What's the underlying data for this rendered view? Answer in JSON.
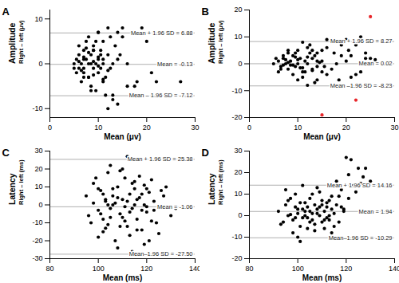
{
  "chart_data": [
    {
      "type": "scatter",
      "title": "A",
      "xlabel": "Mean (μv)",
      "ylabel": [
        "Amplitude",
        "Right – left (μv)"
      ],
      "xlim": [
        0,
        30
      ],
      "xticks": [
        0,
        10,
        20,
        30
      ],
      "ylim": [
        -12,
        12
      ],
      "yticks": [
        -10,
        0,
        10
      ],
      "reference_lines": [
        {
          "value": 6.88,
          "label": "Mean + 1.96 SD = 6.88"
        },
        {
          "value": -0.13,
          "label": "Mean = -0.13"
        },
        {
          "value": -7.12,
          "label": "Mean – 1.96 SD = -7.12"
        }
      ],
      "series": [
        {
          "color": "#000000",
          "x": [
            5,
            5.5,
            6,
            6,
            6.5,
            7,
            7,
            7.5,
            8,
            8,
            8.5,
            9,
            9,
            9.5,
            10,
            10,
            10.5,
            11,
            11,
            12,
            12.5,
            13,
            14,
            5.5,
            6,
            7,
            7.5,
            8,
            8.5,
            9,
            9.5,
            10,
            10.5,
            11,
            11.5,
            12,
            13,
            13.5,
            14,
            15,
            6,
            6.5,
            7,
            8,
            9,
            10,
            11,
            12,
            6.5,
            7.5,
            8.5,
            9.5,
            10.5,
            11.5,
            12.5,
            14,
            16,
            17,
            17.5,
            18,
            19,
            20,
            21,
            22,
            27,
            15,
            13,
            12,
            10,
            9,
            8,
            7,
            16,
            14.5,
            5,
            9,
            10,
            11,
            7,
            8.5
          ],
          "values": [
            0,
            1,
            -1,
            2,
            0,
            3,
            -2,
            1,
            0,
            -3,
            2,
            -1,
            4,
            0,
            1,
            -2,
            3,
            0,
            -4,
            2,
            -1,
            0,
            1,
            -2,
            4,
            -3,
            5,
            6,
            -5,
            3,
            -6,
            7,
            -1,
            5,
            -3,
            8,
            -7,
            4,
            -9,
            6,
            0.5,
            -1.5,
            1.5,
            2.5,
            -2.5,
            1.5,
            -3.5,
            -1.5,
            -4,
            3.5,
            -6,
            5,
            2,
            -7,
            6,
            7,
            -5,
            7,
            -5,
            -4,
            8,
            5,
            -2,
            -4,
            -4,
            8,
            -8,
            -10,
            7,
            3,
            -3,
            1,
            0,
            2,
            -1,
            0.5,
            -0.5,
            1,
            -1,
            0
          ]
        }
      ]
    },
    {
      "type": "scatter",
      "title": "B",
      "xlabel": "Mean (μv)",
      "ylabel": [
        "Amplitude",
        "Right – left (μv)"
      ],
      "xlim": [
        0,
        30
      ],
      "xticks": [
        0,
        10,
        20,
        30
      ],
      "ylim": [
        -20,
        20
      ],
      "yticks": [
        -20,
        -10,
        0,
        10,
        20
      ],
      "reference_lines": [
        {
          "value": 8.27,
          "label": "Mean + 1.96 SD = 8.27"
        },
        {
          "value": 0.02,
          "label": "Mean = 0.02"
        },
        {
          "value": -8.23,
          "label": "Mean –1.96 SD = -8.23"
        }
      ],
      "series": [
        {
          "color": "#000000",
          "x": [
            5,
            6,
            6.5,
            7,
            7.5,
            8,
            8.5,
            9,
            9.5,
            10,
            10.5,
            11,
            11.5,
            12,
            12.5,
            13,
            13.5,
            14,
            15,
            16,
            6,
            7,
            8,
            9,
            10,
            11,
            12,
            13,
            14,
            15,
            16,
            17,
            18,
            19,
            20,
            21,
            22,
            23,
            24,
            25,
            5.5,
            6.5,
            7.5,
            8.5,
            9.5,
            10.5,
            11.5,
            12.5,
            13.5,
            14.5,
            15.5,
            17.5,
            18.5,
            20,
            22,
            24,
            26,
            19,
            17,
            16,
            8,
            9,
            10,
            11,
            12,
            13,
            14,
            7,
            9.5,
            11,
            20.5,
            23,
            15,
            13,
            10,
            8,
            12,
            14,
            18,
            21
          ],
          "values": [
            0,
            1,
            -1,
            2,
            0,
            -2,
            1,
            3,
            -1,
            0,
            2,
            -3,
            1,
            0,
            4,
            -2,
            3,
            -1,
            5,
            -4,
            -3,
            3,
            4,
            -4,
            5,
            -5,
            6,
            2,
            -6,
            1,
            6,
            -2,
            8,
            3,
            9,
            -5,
            7,
            10,
            4,
            2,
            2,
            -2,
            1.5,
            -0.5,
            2.5,
            -1.5,
            -3,
            7,
            -7,
            0.5,
            -1,
            4,
            -6,
            1,
            -4,
            2,
            1.5,
            7,
            -8,
            9,
            0.5,
            -0.5,
            1.5,
            -1.5,
            2.5,
            -2.5,
            1,
            -0.5,
            4,
            8,
            5,
            -3,
            -3,
            5,
            -6,
            5,
            -8,
            4,
            0,
            3
          ]
        },
        {
          "color": "#e8262a",
          "x": [
            25,
            15,
            22
          ],
          "values": [
            17.5,
            -19,
            -13.5
          ]
        }
      ]
    },
    {
      "type": "scatter",
      "title": "C",
      "xlabel": "Mean (ms)",
      "ylabel": [
        "Latency",
        "Right – left (ms)"
      ],
      "xlim": [
        80,
        140
      ],
      "xticks": [
        80,
        100,
        120,
        140
      ],
      "ylim": [
        -30,
        30
      ],
      "yticks": [
        -30,
        -20,
        -10,
        0,
        10,
        20,
        30
      ],
      "reference_lines": [
        {
          "value": 25.38,
          "label": "Mean + 1.96 SD = 25.38"
        },
        {
          "value": -1.06,
          "label": "Mean = -1.06"
        },
        {
          "value": -27.5,
          "label": "Mean–1.96 SD = -27.50"
        }
      ],
      "series": [
        {
          "color": "#000000",
          "x": [
            95,
            97,
            98,
            100,
            101,
            102,
            103,
            104,
            105,
            106,
            107,
            108,
            109,
            110,
            111,
            112,
            113,
            114,
            115,
            116,
            117,
            118,
            119,
            120,
            121,
            122,
            123,
            125,
            127,
            130,
            96,
            99,
            100,
            102,
            104,
            105,
            107,
            108,
            110,
            111,
            112,
            113,
            115,
            116,
            118,
            119,
            120,
            122,
            124,
            126,
            98,
            101,
            103,
            106,
            109,
            111,
            114,
            117,
            121,
            135,
            100,
            103,
            105,
            108,
            110,
            113,
            115,
            118,
            120,
            123,
            102,
            104,
            106,
            109,
            112,
            114,
            116,
            119,
            128,
            132
          ],
          "values": [
            5,
            -10,
            12,
            -3,
            8,
            -15,
            2,
            18,
            -7,
            0,
            -20,
            10,
            -5,
            3,
            15,
            -12,
            6,
            -2,
            9,
            -8,
            4,
            -14,
            11,
            -4,
            7,
            -9,
            2,
            -16,
            5,
            -6,
            -6,
            15,
            -18,
            6,
            -11,
            22,
            1,
            -24,
            20,
            -1,
            27,
            -17,
            13,
            3,
            -3,
            -22,
            9,
            14,
            -10,
            8,
            1,
            -5,
            -13,
            9,
            19,
            -9,
            -26,
            16,
            -20,
            -27,
            9,
            3,
            -2,
            4,
            -7,
            -4,
            0,
            6,
            -1,
            -3,
            -8,
            0,
            5,
            -12,
            2,
            12,
            -14,
            0,
            10,
            -2
          ]
        }
      ]
    },
    {
      "type": "scatter",
      "title": "D",
      "xlabel": "Mean (ms)",
      "ylabel": [
        "Latency",
        "Right – left (ms)"
      ],
      "xlim": [
        80,
        140
      ],
      "xticks": [
        80,
        100,
        120,
        140
      ],
      "ylim": [
        -20,
        30
      ],
      "yticks": [
        -20,
        -10,
        0,
        10,
        20,
        30
      ],
      "reference_lines": [
        {
          "value": 14.16,
          "label": "Mean + 1.96 SD = 14.16"
        },
        {
          "value": 1.94,
          "label": "Mean = 1.94"
        },
        {
          "value": -10.29,
          "label": "Mean–1.96 SD = -10.29"
        }
      ],
      "series": [
        {
          "color": "#000000",
          "x": [
            92,
            94,
            95,
            96,
            97,
            98,
            99,
            100,
            101,
            102,
            103,
            104,
            105,
            106,
            107,
            108,
            109,
            110,
            111,
            112,
            113,
            114,
            115,
            116,
            117,
            118,
            119,
            120,
            121,
            122,
            123,
            125,
            127,
            128,
            126,
            124,
            95,
            98,
            100,
            102,
            104,
            106,
            108,
            110,
            112,
            114,
            116,
            118,
            97,
            99,
            101,
            103,
            105,
            107,
            109,
            111,
            113,
            115,
            117,
            119,
            100,
            102,
            104,
            106,
            108,
            110,
            112,
            114,
            96,
            93,
            103,
            105,
            107,
            109,
            111,
            113,
            99,
            101,
            121,
            130
          ],
          "values": [
            2,
            -3,
            5,
            0,
            8,
            -2,
            4,
            1,
            -5,
            3,
            6,
            -1,
            2,
            10,
            -4,
            3,
            0,
            7,
            -6,
            4,
            -2,
            9,
            1,
            5,
            -3,
            12,
            2,
            27,
            8,
            26,
            14,
            22,
            18,
            22,
            15,
            11,
            12,
            -8,
            -10,
            14,
            -6,
            1,
            13,
            -3,
            6,
            -8,
            16,
            4,
            0.5,
            -1,
            6,
            0,
            -3,
            5,
            11,
            2,
            7,
            -5,
            9,
            3,
            3,
            -1,
            4,
            -2,
            1,
            5,
            -1,
            3,
            7,
            -4,
            2,
            8,
            -7,
            4,
            -2,
            0,
            10,
            -12,
            19,
            16
          ]
        }
      ]
    }
  ]
}
